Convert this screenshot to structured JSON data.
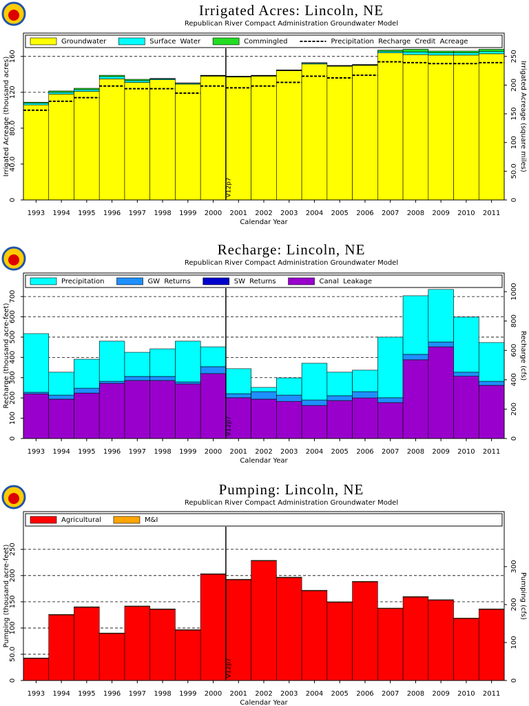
{
  "chart_data": [
    {
      "type": "bar",
      "title": "Irrigated Acres: Lincoln, NE",
      "subtitle": "Republican River Compact Administration Groundwater Model",
      "xlabel": "Calendar Year",
      "ylabel": "Irrigated Acreage (thousand acres)",
      "y2label": "Irrigated Acreage (square miles)",
      "categories": [
        "1993",
        "1994",
        "1995",
        "1996",
        "1997",
        "1998",
        "1999",
        "2000",
        "2001",
        "2002",
        "2003",
        "2004",
        "2005",
        "2006",
        "2007",
        "2008",
        "2009",
        "2010",
        "2011"
      ],
      "series": [
        {
          "name": "Groundwater",
          "color": "#ffff00",
          "values": [
            106,
            118,
            121,
            135,
            131,
            134,
            129,
            138,
            137,
            138,
            144,
            151.5,
            149,
            150,
            164,
            162,
            161.5,
            161.5,
            163
          ]
        },
        {
          "name": "Surface Water",
          "color": "#00ffff",
          "values": [
            2,
            2,
            2,
            2.5,
            2,
            1,
            1,
            0.5,
            0.5,
            0.5,
            0.5,
            1,
            0.5,
            0.5,
            1.5,
            3,
            2.5,
            2.5,
            2.5
          ]
        },
        {
          "name": "Commingled",
          "color": "#22dd22",
          "values": [
            1,
            1.5,
            1.5,
            1.5,
            1.5,
            0.5,
            0.5,
            0.5,
            0.5,
            0.5,
            0.5,
            0.5,
            0.5,
            0.5,
            1.5,
            3,
            2,
            2,
            2.5
          ]
        },
        {
          "name": "Precipitation Recharge Credit Acreage",
          "color": "#000000",
          "type": "line",
          "dashed": true,
          "values": [
            100,
            110,
            114,
            127,
            124,
            124,
            119,
            127,
            125,
            127,
            131,
            138,
            136,
            139,
            154,
            153,
            152,
            152,
            153
          ]
        }
      ],
      "stacked": true,
      "ylim": [
        0,
        186
      ],
      "yticks": [
        0,
        {
          "value": 40,
          "label": "40.0"
        },
        {
          "value": 80,
          "label": "80.0"
        },
        120,
        160
      ],
      "y2lim": [
        0,
        290.6
      ],
      "y2ticks": [
        0,
        {
          "value": 50,
          "label": "50.0"
        },
        100,
        150,
        200,
        250
      ],
      "grid": true,
      "legend": "top",
      "annotation": {
        "text": "V12p7",
        "x": "2001"
      }
    },
    {
      "type": "bar",
      "title": "Recharge: Lincoln, NE",
      "subtitle": "Republican River Compact Administration Groundwater Model",
      "xlabel": "Calendar Year",
      "ylabel": "Recharge (thousand acre-feet)",
      "y2label": "Recharge (cfs)",
      "categories": [
        "1993",
        "1994",
        "1995",
        "1996",
        "1997",
        "1998",
        "1999",
        "2000",
        "2001",
        "2002",
        "2003",
        "2004",
        "2005",
        "2006",
        "2007",
        "2008",
        "2009",
        "2010",
        "2011"
      ],
      "series": [
        {
          "name": "Precipitation",
          "color": "#00ffff",
          "values": [
            289,
            113,
            143,
            198,
            119,
            136,
            201,
            98,
            123,
            21,
            85,
            181,
            116,
            106,
            299,
            289,
            259,
            272,
            191
          ]
        },
        {
          "name": "GW Returns",
          "color": "#1e90ff",
          "values": [
            8,
            20,
            24,
            10,
            20,
            20,
            10,
            34,
            20,
            37,
            31,
            27,
            24,
            31,
            24,
            27,
            24,
            20,
            20
          ]
        },
        {
          "name": "SW Returns",
          "color": "#0000cd",
          "values": [
            0,
            0,
            0,
            0,
            0,
            0,
            0,
            0,
            0,
            0,
            0,
            0,
            0,
            0,
            0,
            0,
            0,
            0,
            0
          ]
        },
        {
          "name": "Canal Leakage",
          "color": "#9900cc",
          "values": [
            220,
            194,
            224,
            272,
            286,
            286,
            269,
            320,
            201,
            194,
            183,
            163,
            187,
            200,
            177,
            388,
            452,
            307,
            262
          ]
        }
      ],
      "stacked": true,
      "stack_order": "reverse",
      "ylim": [
        0,
        816
      ],
      "yticks": [
        0,
        100,
        200,
        300,
        400,
        500,
        600,
        700
      ],
      "y2lim": [
        0,
        1127
      ],
      "y2ticks": [
        0,
        200,
        400,
        600,
        800,
        1000
      ],
      "grid": true,
      "legend": "top",
      "annotation": {
        "text": "V12p7",
        "x": "2001"
      }
    },
    {
      "type": "bar",
      "title": "Pumping: Lincoln, NE",
      "subtitle": "Republican River Compact Administration Groundwater Model",
      "xlabel": "Calendar Year",
      "ylabel": "Pumping (thousand acre-feet)",
      "y2label": "Pumping (cfs)",
      "categories": [
        "1993",
        "1994",
        "1995",
        "1996",
        "1997",
        "1998",
        "1999",
        "2000",
        "2001",
        "2002",
        "2003",
        "2004",
        "2005",
        "2006",
        "2007",
        "2008",
        "2009",
        "2010",
        "2011"
      ],
      "series": [
        {
          "name": "Agricultural",
          "color": "#ff0000",
          "values": [
            42,
            125,
            139.5,
            89.5,
            141,
            135.5,
            96,
            202.5,
            192,
            228,
            196,
            171,
            149,
            188,
            137,
            159,
            153,
            118,
            135.5
          ]
        },
        {
          "name": "M&I",
          "color": "#ffa500",
          "values": [
            1,
            1,
            1,
            1,
            1,
            1,
            1,
            1,
            1,
            1,
            1,
            1,
            1,
            1,
            1,
            1,
            1,
            1,
            1
          ]
        }
      ],
      "stacked": true,
      "ylim": [
        0,
        322
      ],
      "yticks": [
        0,
        {
          "value": 50,
          "label": "50.0"
        },
        100,
        150,
        200,
        250
      ],
      "y2lim": [
        0,
        445
      ],
      "y2ticks": [
        0,
        100,
        200,
        300
      ],
      "grid": true,
      "legend": "top",
      "annotation": {
        "text": "V12p7",
        "x": "2001"
      }
    }
  ]
}
